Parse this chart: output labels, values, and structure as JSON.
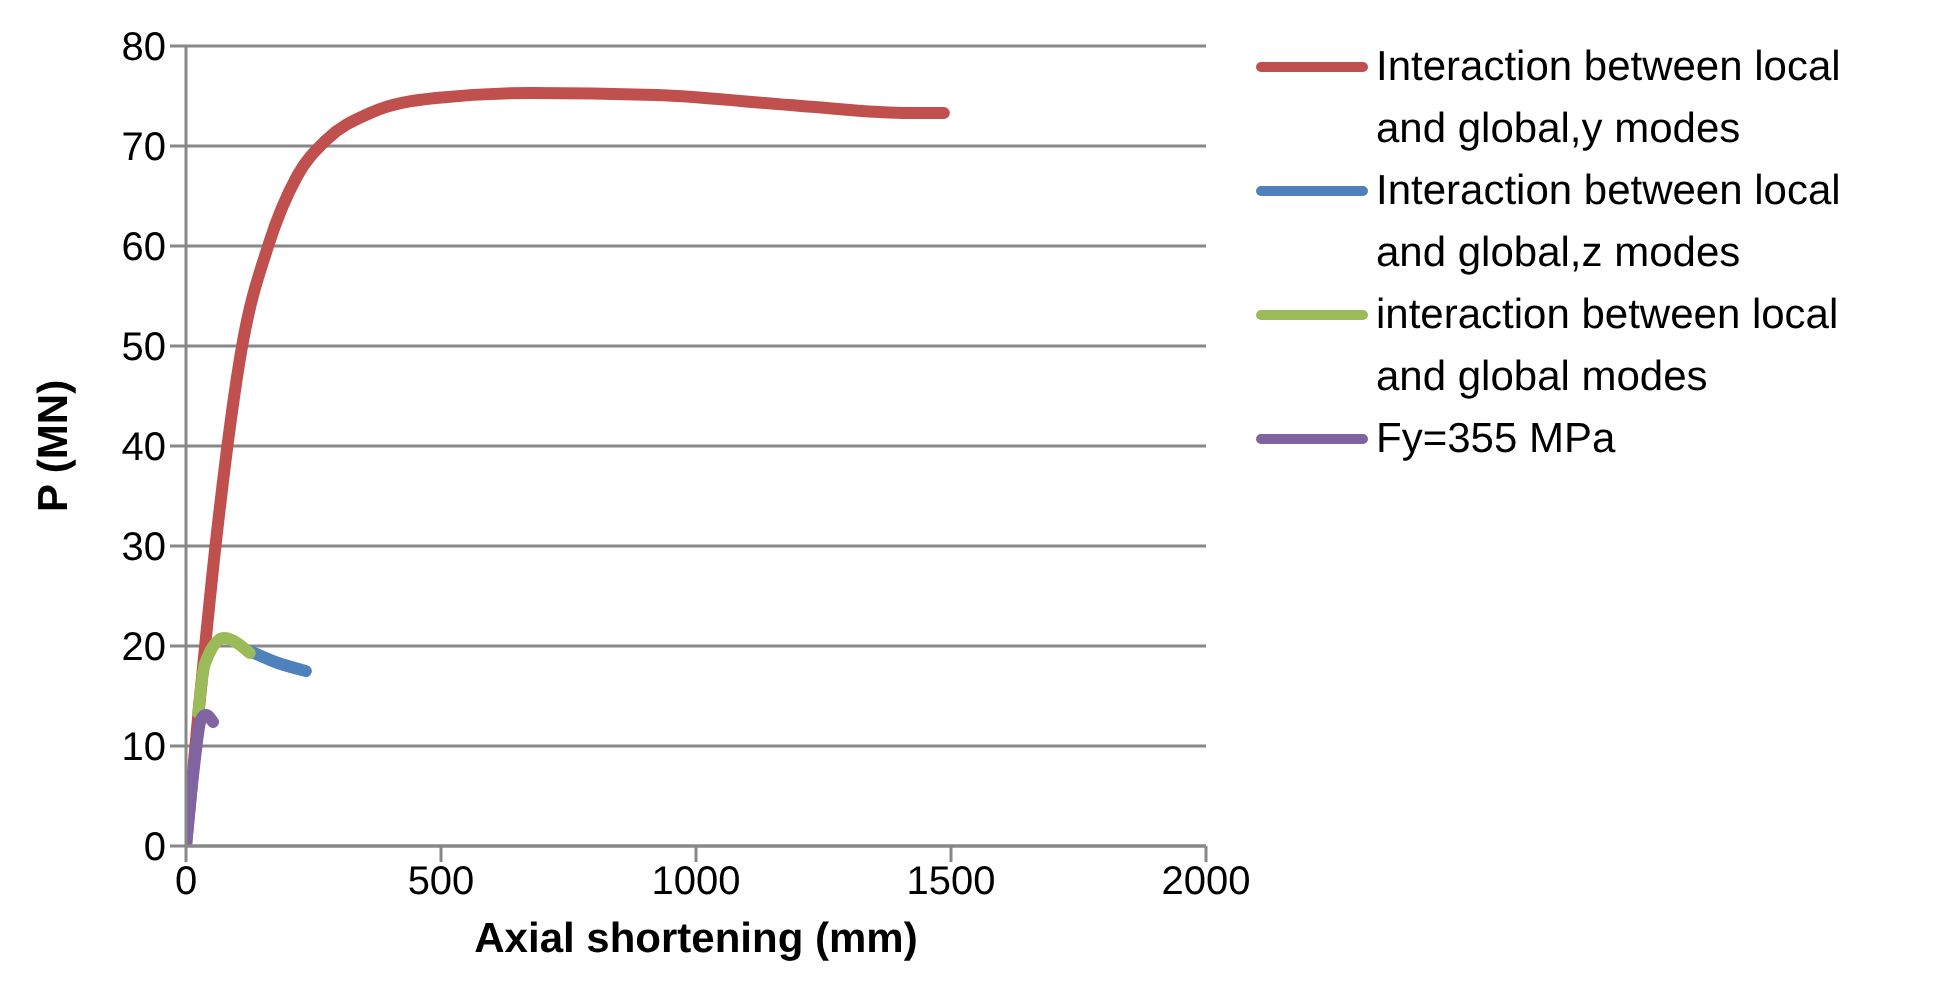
{
  "chart_data": {
    "type": "line",
    "xlabel": "Axial shortening (mm)",
    "ylabel": "P (MN)",
    "xlim": [
      0,
      2000
    ],
    "xticks": [
      0,
      500,
      1000,
      1500,
      2000
    ],
    "ylim": [
      0,
      80
    ],
    "yticks": [
      0,
      10,
      20,
      30,
      40,
      50,
      60,
      70,
      80
    ],
    "grid": "y",
    "legend": "right",
    "marker": "none",
    "line_style": "solid",
    "series": [
      {
        "name": "Interaction between local and global,y modes",
        "color": "#c0504d",
        "x": [
          0,
          24,
          60,
          110,
          161,
          218,
          275,
          361,
          490,
          676,
          920,
          1206,
          1421,
          1486
        ],
        "values": [
          0,
          13,
          31,
          50,
          60,
          67,
          70.6,
          73.3,
          74.8,
          75.3,
          75.1,
          74,
          73.3,
          73.3
        ]
      },
      {
        "name": "Interaction between local and global,z modes",
        "color": "#4f81bd",
        "x": [
          125,
          175,
          235
        ],
        "values": [
          19.5,
          18.4,
          17.5
        ]
      },
      {
        "name": "interaction between local and global modes",
        "color": "#9bbb59",
        "x": [
          24,
          37,
          74,
          125
        ],
        "values": [
          13.3,
          18.2,
          20.8,
          19.3
        ]
      },
      {
        "name": "Fy=355 MPa",
        "color": "#8064a2",
        "x": [
          0,
          17,
          29,
          39,
          53
        ],
        "values": [
          0,
          8.5,
          12.6,
          13.1,
          12.4
        ]
      }
    ]
  }
}
